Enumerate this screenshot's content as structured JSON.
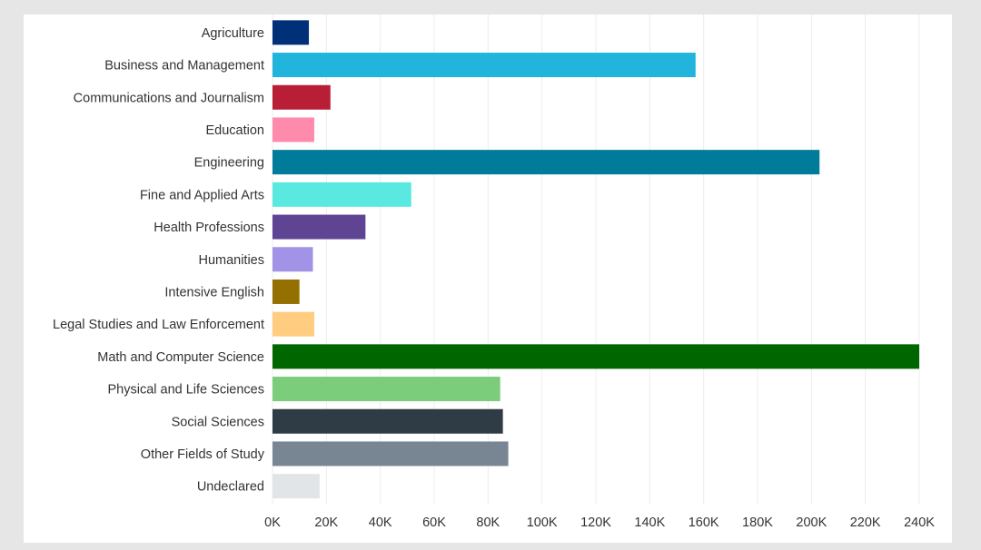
{
  "chart_data": {
    "type": "bar",
    "orientation": "horizontal",
    "title": "",
    "xlabel": "",
    "ylabel": "",
    "xlim": [
      0,
      245000
    ],
    "grid": true,
    "categories": [
      "Agriculture",
      "Business and Management",
      "Communications and Journalism",
      "Education",
      "Engineering",
      "Fine and Applied Arts",
      "Health Professions",
      "Humanities",
      "Intensive English",
      "Legal Studies and Law Enforcement",
      "Math and Computer Science",
      "Physical and Life Sciences",
      "Social Sciences",
      "Other Fields of Study",
      "Undeclared"
    ],
    "values": [
      13500,
      157000,
      21500,
      15500,
      203000,
      51500,
      34500,
      15000,
      10000,
      15500,
      240000,
      84500,
      85500,
      87500,
      17500
    ],
    "colors": [
      "#003178",
      "#21b5de",
      "#b81f36",
      "#ff8bac",
      "#007b9a",
      "#5ae9e0",
      "#5e4492",
      "#a393e6",
      "#937000",
      "#ffcc80",
      "#006600",
      "#7bcd7b",
      "#2f3c45",
      "#788694",
      "#e1e5e7"
    ],
    "ticks": [
      0,
      20000,
      40000,
      60000,
      80000,
      100000,
      120000,
      140000,
      160000,
      180000,
      200000,
      220000,
      240000
    ],
    "tick_labels": [
      "0K",
      "20K",
      "40K",
      "60K",
      "80K",
      "100K",
      "120K",
      "140K",
      "160K",
      "180K",
      "200K",
      "220K",
      "240K"
    ]
  }
}
